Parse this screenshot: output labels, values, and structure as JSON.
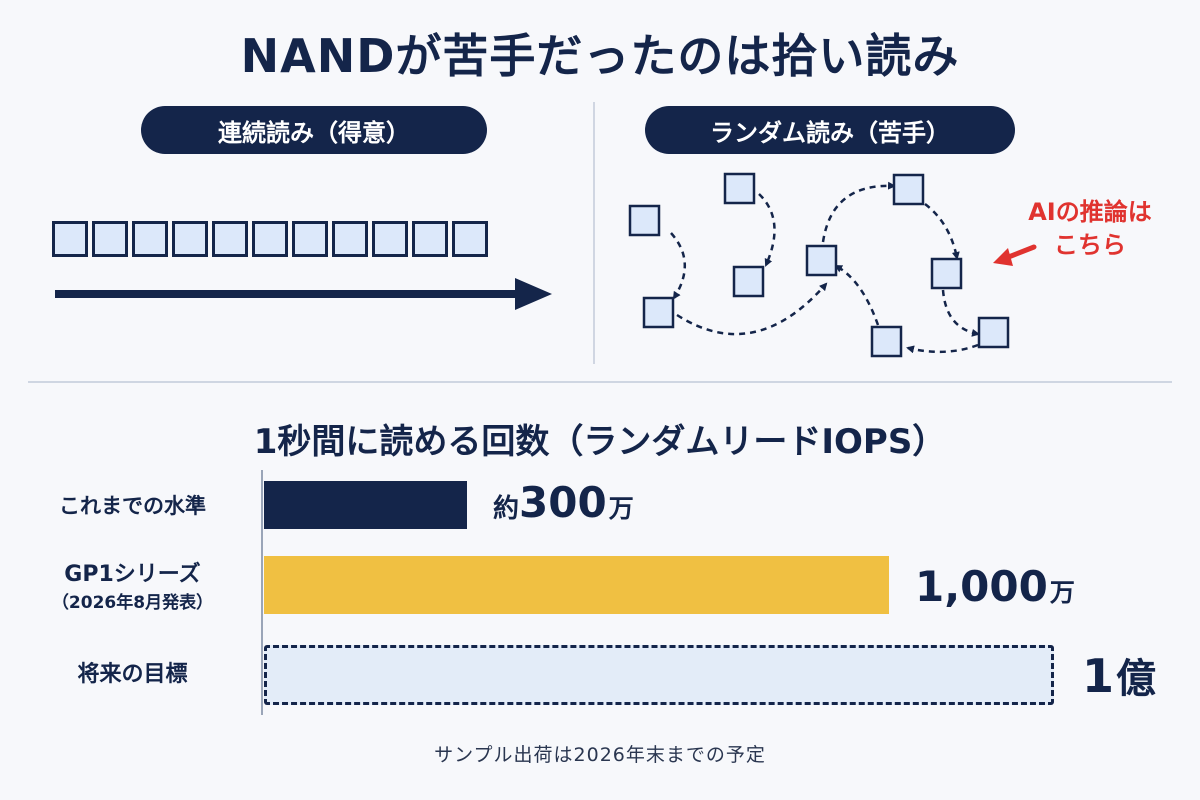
{
  "title": "NANDが苦手だったのは拾い読み",
  "sequential": {
    "label": "連続読み（得意）",
    "block_count": 11
  },
  "random": {
    "label": "ランダム読み（苦手）",
    "ai_note_line1": "AIの推論は",
    "ai_note_line2": "こちら"
  },
  "subtitle": "1秒間に読める回数（ランダムリードIOPS）",
  "colors": {
    "navy": "#14254a",
    "gold": "#f0c042",
    "light_blue": "#e3ecf8",
    "accent_red": "#e0332f"
  },
  "chart_data": {
    "type": "bar",
    "orientation": "horizontal",
    "title": "1秒間に読める回数（ランダムリードIOPS）",
    "categories": [
      "これまでの水準",
      "GP1シリーズ（2026年8月発表）",
      "将来の目標"
    ],
    "series": [
      {
        "values": [
          3000000,
          10000000,
          100000000
        ]
      }
    ],
    "bar_fill_fraction": [
      0.203,
      0.625,
      0.79
    ],
    "data_labels": [
      {
        "prefix": "約",
        "number": "300",
        "unit": "万"
      },
      {
        "prefix": "",
        "number": "1,000",
        "unit": "万"
      },
      {
        "prefix": "",
        "number": "1",
        "unit": "億"
      }
    ],
    "styles": [
      "solid-navy",
      "solid-gold",
      "dashed-outline"
    ],
    "grid": false,
    "legend": "none"
  },
  "rows": [
    {
      "label": "これまでの水準",
      "sublabel": ""
    },
    {
      "label": "GP1シリーズ",
      "sublabel": "（2026年8月発表）"
    },
    {
      "label": "将来の目標",
      "sublabel": ""
    }
  ],
  "footnote": "サンプル出荷は2026年末までの予定"
}
